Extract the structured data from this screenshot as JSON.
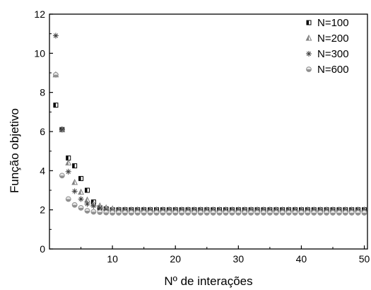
{
  "chart_data": {
    "type": "scatter",
    "title": "",
    "xlabel": "Nº de interações",
    "ylabel": "Função objetivo",
    "xlim": [
      0,
      50.5
    ],
    "ylim": [
      0,
      12
    ],
    "x_ticks": [
      "10",
      "20",
      "30",
      "40",
      "50"
    ],
    "y_ticks": [
      "0",
      "2",
      "4",
      "6",
      "8",
      "10",
      "12"
    ],
    "grid": false,
    "legend_position": "top-right",
    "series": [
      {
        "name": "N=100",
        "marker": "half-filled-square",
        "color": "#000000",
        "points": [
          [
            1,
            7.35
          ],
          [
            2,
            6.1
          ],
          [
            3,
            4.65
          ],
          [
            4,
            4.25
          ],
          [
            5,
            3.6
          ],
          [
            6,
            3.0
          ],
          [
            7,
            2.4
          ],
          [
            8,
            2.1
          ],
          [
            9,
            2.05
          ],
          [
            10,
            2.0
          ],
          [
            11,
            2.0
          ],
          [
            12,
            2.0
          ],
          [
            13,
            2.0
          ],
          [
            14,
            2.0
          ],
          [
            15,
            2.0
          ],
          [
            16,
            2.0
          ],
          [
            17,
            2.0
          ],
          [
            18,
            2.0
          ],
          [
            19,
            2.0
          ],
          [
            20,
            2.0
          ],
          [
            21,
            2.0
          ],
          [
            22,
            2.0
          ],
          [
            23,
            2.0
          ],
          [
            24,
            2.0
          ],
          [
            25,
            2.0
          ],
          [
            26,
            2.0
          ],
          [
            27,
            2.0
          ],
          [
            28,
            2.0
          ],
          [
            29,
            2.0
          ],
          [
            30,
            2.0
          ],
          [
            31,
            2.0
          ],
          [
            32,
            2.0
          ],
          [
            33,
            2.0
          ],
          [
            34,
            2.0
          ],
          [
            35,
            2.0
          ],
          [
            36,
            2.0
          ],
          [
            37,
            2.0
          ],
          [
            38,
            2.0
          ],
          [
            39,
            2.0
          ],
          [
            40,
            2.0
          ],
          [
            41,
            2.0
          ],
          [
            42,
            2.0
          ],
          [
            43,
            2.0
          ],
          [
            44,
            2.0
          ],
          [
            45,
            2.0
          ],
          [
            46,
            2.0
          ],
          [
            47,
            2.0
          ],
          [
            48,
            2.0
          ],
          [
            49,
            2.0
          ],
          [
            50,
            2.0
          ]
        ]
      },
      {
        "name": "N=200",
        "marker": "half-filled-triangle",
        "color": "#808080",
        "points": [
          [
            1,
            8.9
          ],
          [
            2,
            6.1
          ],
          [
            3,
            4.4
          ],
          [
            4,
            3.4
          ],
          [
            5,
            2.9
          ],
          [
            6,
            2.5
          ],
          [
            7,
            2.3
          ],
          [
            8,
            2.2
          ],
          [
            9,
            2.1
          ],
          [
            10,
            2.05
          ],
          [
            11,
            2.0
          ],
          [
            12,
            2.0
          ],
          [
            13,
            2.0
          ],
          [
            14,
            2.0
          ],
          [
            15,
            2.0
          ],
          [
            16,
            2.0
          ],
          [
            17,
            2.0
          ],
          [
            18,
            2.0
          ],
          [
            19,
            2.0
          ],
          [
            20,
            2.0
          ],
          [
            21,
            2.0
          ],
          [
            22,
            2.0
          ],
          [
            23,
            2.0
          ],
          [
            24,
            2.0
          ],
          [
            25,
            2.0
          ],
          [
            26,
            2.0
          ],
          [
            27,
            2.0
          ],
          [
            28,
            2.0
          ],
          [
            29,
            2.0
          ],
          [
            30,
            2.0
          ],
          [
            31,
            2.0
          ],
          [
            32,
            2.0
          ],
          [
            33,
            2.0
          ],
          [
            34,
            2.0
          ],
          [
            35,
            2.0
          ],
          [
            36,
            2.0
          ],
          [
            37,
            2.0
          ],
          [
            38,
            2.0
          ],
          [
            39,
            2.0
          ],
          [
            40,
            2.0
          ],
          [
            41,
            2.0
          ],
          [
            42,
            2.0
          ],
          [
            43,
            2.0
          ],
          [
            44,
            2.0
          ],
          [
            45,
            2.0
          ],
          [
            46,
            2.0
          ],
          [
            47,
            2.0
          ],
          [
            48,
            2.0
          ],
          [
            49,
            2.0
          ],
          [
            50,
            2.0
          ]
        ]
      },
      {
        "name": "N=300",
        "marker": "star",
        "color": "#404040",
        "points": [
          [
            1,
            10.9
          ],
          [
            2,
            6.1
          ],
          [
            3,
            3.95
          ],
          [
            4,
            2.95
          ],
          [
            5,
            2.55
          ],
          [
            6,
            2.3
          ],
          [
            7,
            2.2
          ],
          [
            8,
            2.1
          ],
          [
            9,
            2.0
          ],
          [
            10,
            1.95
          ],
          [
            11,
            1.95
          ],
          [
            12,
            1.95
          ],
          [
            13,
            1.95
          ],
          [
            14,
            1.95
          ],
          [
            15,
            1.95
          ],
          [
            16,
            1.95
          ],
          [
            17,
            1.95
          ],
          [
            18,
            1.95
          ],
          [
            19,
            1.95
          ],
          [
            20,
            1.95
          ],
          [
            21,
            1.95
          ],
          [
            22,
            1.95
          ],
          [
            23,
            1.95
          ],
          [
            24,
            1.95
          ],
          [
            25,
            1.95
          ],
          [
            26,
            1.95
          ],
          [
            27,
            1.95
          ],
          [
            28,
            1.95
          ],
          [
            29,
            1.95
          ],
          [
            30,
            1.95
          ],
          [
            31,
            1.95
          ],
          [
            32,
            1.95
          ],
          [
            33,
            1.95
          ],
          [
            34,
            1.95
          ],
          [
            35,
            1.95
          ],
          [
            36,
            1.95
          ],
          [
            37,
            1.95
          ],
          [
            38,
            1.95
          ],
          [
            39,
            1.95
          ],
          [
            40,
            1.95
          ],
          [
            41,
            1.95
          ],
          [
            42,
            1.95
          ],
          [
            43,
            1.95
          ],
          [
            44,
            1.95
          ],
          [
            45,
            1.95
          ],
          [
            46,
            1.95
          ],
          [
            47,
            1.95
          ],
          [
            48,
            1.95
          ],
          [
            49,
            1.95
          ],
          [
            50,
            1.95
          ]
        ]
      },
      {
        "name": "N=600",
        "marker": "half-filled-circle",
        "color": "#909090",
        "points": [
          [
            1,
            8.9
          ],
          [
            2,
            3.75
          ],
          [
            3,
            2.55
          ],
          [
            4,
            2.25
          ],
          [
            5,
            2.1
          ],
          [
            6,
            1.95
          ],
          [
            7,
            1.9
          ],
          [
            8,
            1.88
          ],
          [
            9,
            1.86
          ],
          [
            10,
            1.85
          ],
          [
            11,
            1.85
          ],
          [
            12,
            1.85
          ],
          [
            13,
            1.85
          ],
          [
            14,
            1.85
          ],
          [
            15,
            1.85
          ],
          [
            16,
            1.85
          ],
          [
            17,
            1.85
          ],
          [
            18,
            1.85
          ],
          [
            19,
            1.85
          ],
          [
            20,
            1.85
          ],
          [
            21,
            1.85
          ],
          [
            22,
            1.85
          ],
          [
            23,
            1.85
          ],
          [
            24,
            1.85
          ],
          [
            25,
            1.85
          ],
          [
            26,
            1.85
          ],
          [
            27,
            1.85
          ],
          [
            28,
            1.85
          ],
          [
            29,
            1.85
          ],
          [
            30,
            1.85
          ],
          [
            31,
            1.85
          ],
          [
            32,
            1.85
          ],
          [
            33,
            1.85
          ],
          [
            34,
            1.85
          ],
          [
            35,
            1.85
          ],
          [
            36,
            1.85
          ],
          [
            37,
            1.85
          ],
          [
            38,
            1.85
          ],
          [
            39,
            1.85
          ],
          [
            40,
            1.85
          ],
          [
            41,
            1.85
          ],
          [
            42,
            1.85
          ],
          [
            43,
            1.85
          ],
          [
            44,
            1.85
          ],
          [
            45,
            1.85
          ],
          [
            46,
            1.85
          ],
          [
            47,
            1.85
          ],
          [
            48,
            1.85
          ],
          [
            49,
            1.85
          ],
          [
            50,
            1.85
          ]
        ]
      }
    ]
  }
}
